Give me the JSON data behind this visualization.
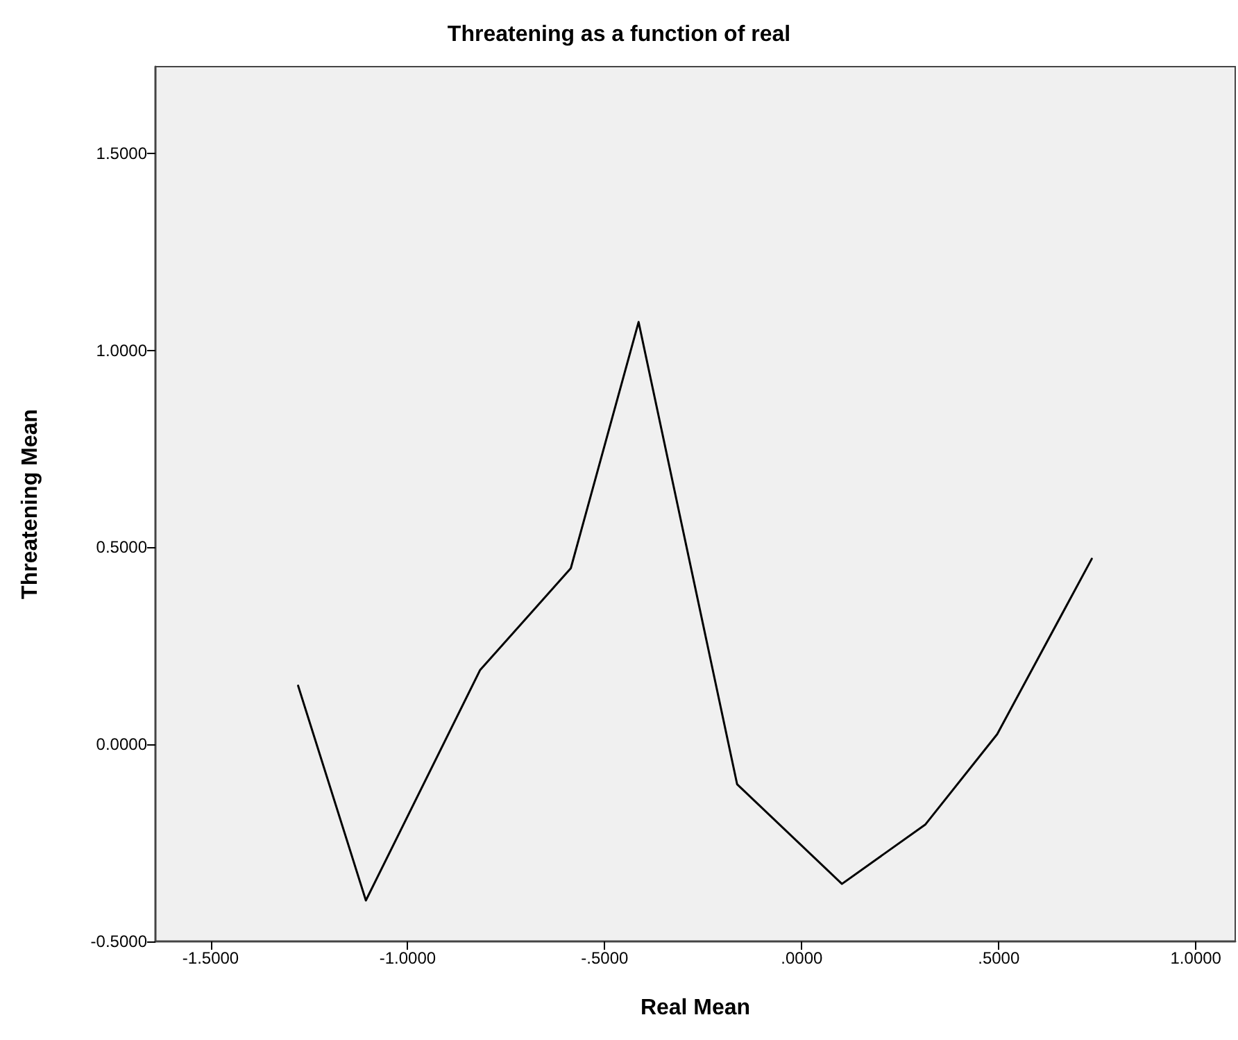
{
  "chart_data": {
    "type": "line",
    "title": "Threatening as a function of real",
    "xlabel": "Real Mean",
    "ylabel": "Threatening Mean",
    "x": [
      -1.278,
      -1.106,
      -0.816,
      -0.586,
      -0.414,
      -0.164,
      0.102,
      0.314,
      0.496,
      0.736
    ],
    "series": [
      {
        "color": "#000000",
        "values": [
          0.149,
          -0.396,
          0.189,
          0.447,
          1.072,
          -0.101,
          -0.354,
          -0.203,
          0.026,
          0.471
        ]
      }
    ],
    "xlim": [
      -1.64,
      1.1
    ],
    "ylim": [
      -0.5,
      1.72
    ],
    "xticks": [
      {
        "value": -1.5,
        "label": "-1.5000"
      },
      {
        "value": -1,
        "label": "-1.0000"
      },
      {
        "value": -0.5,
        "label": "-.5000"
      },
      {
        "value": 0,
        "label": ".0000"
      },
      {
        "value": 0.5,
        "label": ".5000"
      },
      {
        "value": 1,
        "label": "1.0000"
      }
    ],
    "yticks": [
      {
        "value": -0.5,
        "label": "-0.5000"
      },
      {
        "value": 0,
        "label": "0.0000"
      },
      {
        "value": 0.5,
        "label": "0.5000"
      },
      {
        "value": 1,
        "label": "1.0000"
      },
      {
        "value": 1.5,
        "label": "1.5000"
      }
    ],
    "grid": false,
    "marker": "none",
    "line_style": "solid"
  }
}
